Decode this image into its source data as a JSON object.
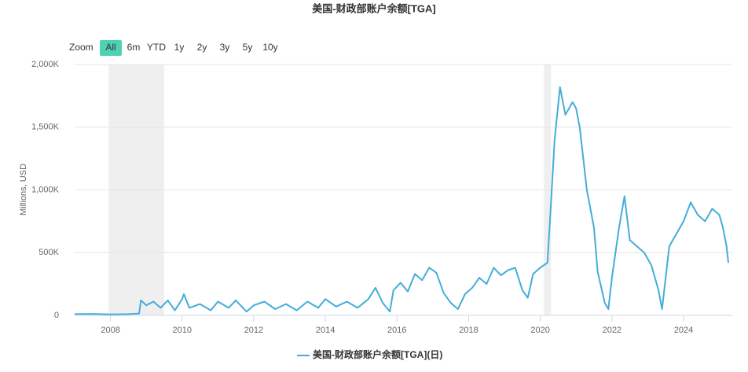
{
  "chart_data": {
    "type": "line",
    "title": "美国-财政部账户余额[TGA]",
    "y_label": "Millions, USD",
    "range_selector": {
      "label": "Zoom",
      "buttons": [
        "All",
        "6m",
        "YTD",
        "1y",
        "2y",
        "3y",
        "5y",
        "10y"
      ],
      "selected": 0
    },
    "x": [
      2007.0,
      2007.5,
      2008.0,
      2008.5,
      2008.8,
      2008.85,
      2009.0,
      2009.2,
      2009.4,
      2009.6,
      2009.8,
      2010.0,
      2010.05,
      2010.2,
      2010.5,
      2010.8,
      2011.0,
      2011.3,
      2011.5,
      2011.8,
      2012.0,
      2012.3,
      2012.6,
      2012.9,
      2013.2,
      2013.5,
      2013.8,
      2014.0,
      2014.3,
      2014.6,
      2014.9,
      2015.2,
      2015.4,
      2015.6,
      2015.8,
      2015.9,
      2016.1,
      2016.3,
      2016.5,
      2016.7,
      2016.9,
      2017.1,
      2017.3,
      2017.5,
      2017.7,
      2017.9,
      2018.1,
      2018.3,
      2018.5,
      2018.7,
      2018.9,
      2019.1,
      2019.3,
      2019.5,
      2019.65,
      2019.8,
      2020.0,
      2020.2,
      2020.3,
      2020.4,
      2020.55,
      2020.7,
      2020.9,
      2021.0,
      2021.1,
      2021.3,
      2021.5,
      2021.6,
      2021.8,
      2021.9,
      2022.0,
      2022.2,
      2022.35,
      2022.5,
      2022.7,
      2022.9,
      2023.1,
      2023.3,
      2023.4,
      2023.5,
      2023.6,
      2023.8,
      2024.0,
      2024.2,
      2024.4,
      2024.6,
      2024.8,
      2025.0,
      2025.1,
      2025.2,
      2025.25
    ],
    "series": [
      {
        "name": "美国-财政部账户余额[TGA](日)",
        "color": "#45acd8",
        "values": [
          10000,
          12000,
          8000,
          10000,
          15000,
          120000,
          80000,
          110000,
          60000,
          120000,
          40000,
          130000,
          170000,
          60000,
          90000,
          40000,
          110000,
          60000,
          120000,
          30000,
          80000,
          110000,
          50000,
          90000,
          40000,
          110000,
          60000,
          130000,
          70000,
          110000,
          60000,
          130000,
          220000,
          100000,
          30000,
          200000,
          260000,
          190000,
          330000,
          280000,
          380000,
          340000,
          180000,
          100000,
          50000,
          170000,
          220000,
          300000,
          250000,
          380000,
          320000,
          360000,
          380000,
          200000,
          140000,
          330000,
          380000,
          420000,
          900000,
          1400000,
          1820000,
          1600000,
          1700000,
          1650000,
          1500000,
          1000000,
          700000,
          350000,
          100000,
          50000,
          300000,
          700000,
          950000,
          600000,
          550000,
          500000,
          400000,
          200000,
          50000,
          300000,
          550000,
          650000,
          750000,
          900000,
          800000,
          750000,
          850000,
          800000,
          700000,
          550000,
          420000
        ]
      }
    ],
    "plot_bands": [
      [
        2007.95,
        2009.5
      ],
      [
        2020.1,
        2020.3
      ]
    ],
    "xlim": [
      2007.0,
      2025.36
    ],
    "xticks": [
      2008,
      2010,
      2012,
      2014,
      2016,
      2018,
      2020,
      2022,
      2024
    ],
    "ylim": [
      0,
      2000000
    ],
    "yticks": [
      0,
      {
        "value": 500000,
        "label": "500K"
      },
      {
        "value": 1000000,
        "label": "1,000K"
      },
      {
        "value": 1500000,
        "label": "1,500K"
      },
      {
        "value": 2000000,
        "label": "2,000K"
      }
    ],
    "grid": true
  }
}
